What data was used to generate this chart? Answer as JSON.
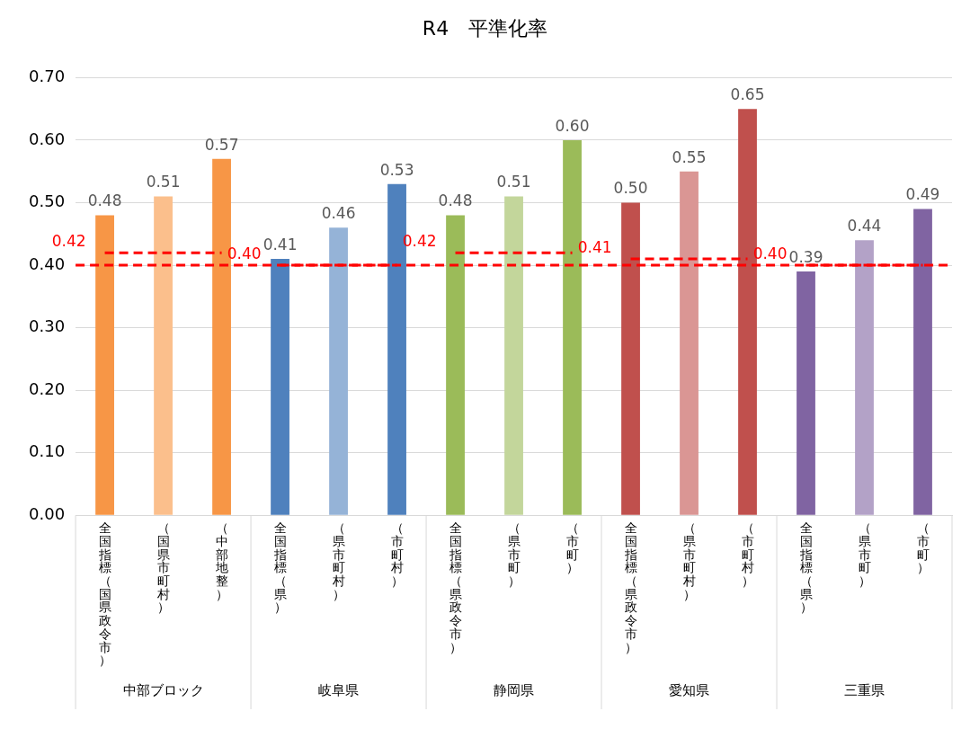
{
  "chart_data": {
    "type": "bar",
    "title": "R4　平準化率",
    "categories": [
      "全国指標（国県政令市）",
      "（国県市町村）",
      "（中部地整）",
      "全国指標（県）",
      "（県市町村）",
      "（市町村）",
      "全国指標（県政令市）",
      "（県市町）",
      "（市町）",
      "全国指標（県政令市）",
      "（県市町村）",
      "（市町村）",
      "全国指標（県）",
      "（県市町）",
      "（市町）"
    ],
    "annotations": [
      "中部ブロック",
      "岐阜県",
      "静岡県",
      "愛知県",
      "三重県"
    ],
    "series": [
      {
        "colors": [
          "#f79646",
          "#fbbf8c",
          "#f79646",
          "#4f81bd",
          "#95b3d7",
          "#4f81bd",
          "#9bbb59",
          "#c3d69b",
          "#9bbb59",
          "#c0504d",
          "#da9694",
          "#c0504d",
          "#8064a2",
          "#b3a2c7",
          "#8064a2"
        ],
        "values": [
          0.48,
          0.51,
          0.57,
          0.41,
          0.46,
          0.53,
          0.48,
          0.51,
          0.6,
          0.5,
          0.55,
          0.65,
          0.39,
          0.44,
          0.49
        ],
        "value_labels": [
          "0.48",
          "0.51",
          "0.57",
          "0.41",
          "0.46",
          "0.53",
          "0.48",
          "0.51",
          "0.60",
          "0.50",
          "0.55",
          "0.65",
          "0.39",
          "0.44",
          "0.49"
        ]
      },
      {
        "type": "line",
        "color": "#ff0000",
        "line_style": "dashed",
        "values": [
          0.42,
          0.42,
          0.42,
          null,
          null,
          null,
          null,
          null,
          null,
          null,
          null,
          null,
          null,
          null,
          null
        ],
        "value_labels": [
          "0.42",
          null,
          null,
          null,
          null,
          null,
          null,
          null,
          null,
          null,
          null,
          null,
          null,
          null,
          null
        ]
      },
      {
        "type": "line",
        "color": "#ff0000",
        "line_style": "dashed",
        "values": [
          null,
          null,
          null,
          0.4,
          0.4,
          0.4,
          null,
          null,
          null,
          null,
          null,
          null,
          null,
          null,
          null
        ],
        "value_labels": [
          null,
          null,
          null,
          "0.40",
          null,
          null,
          null,
          null,
          null,
          null,
          null,
          null,
          null,
          null,
          null
        ]
      },
      {
        "type": "line",
        "color": "#ff0000",
        "line_style": "dashed",
        "values": [
          null,
          null,
          null,
          null,
          null,
          null,
          0.42,
          0.42,
          0.42,
          null,
          null,
          null,
          null,
          null,
          null
        ],
        "value_labels": [
          null,
          null,
          null,
          null,
          null,
          null,
          "0.42",
          null,
          null,
          null,
          null,
          null,
          null,
          null,
          null
        ]
      },
      {
        "type": "line",
        "color": "#ff0000",
        "line_style": "dashed",
        "values": [
          null,
          null,
          null,
          null,
          null,
          null,
          null,
          null,
          null,
          0.41,
          0.41,
          0.41,
          null,
          null,
          null
        ],
        "value_labels": [
          null,
          null,
          null,
          null,
          null,
          null,
          null,
          null,
          null,
          "0.41",
          null,
          null,
          null,
          null,
          null
        ]
      },
      {
        "type": "line",
        "color": "#ff0000",
        "line_style": "dashed",
        "values": [
          null,
          null,
          null,
          null,
          null,
          null,
          null,
          null,
          null,
          null,
          null,
          null,
          0.4,
          0.4,
          0.4
        ],
        "value_labels": [
          null,
          null,
          null,
          null,
          null,
          null,
          null,
          null,
          null,
          null,
          null,
          null,
          "0.40",
          null,
          null
        ]
      }
    ],
    "ref_lines": [
      {
        "axis": "y",
        "value": 0.4,
        "color": "#ff0000",
        "line_style": "dashed"
      }
    ],
    "ylim": [
      0,
      0.7
    ],
    "yticks": [
      {
        "value": 0,
        "label": "0.00"
      },
      {
        "value": 0.1,
        "label": "0.10"
      },
      {
        "value": 0.2,
        "label": "0.20"
      },
      {
        "value": 0.3,
        "label": "0.30"
      },
      {
        "value": 0.4,
        "label": "0.40"
      },
      {
        "value": 0.5,
        "label": "0.50"
      },
      {
        "value": 0.6,
        "label": "0.60"
      },
      {
        "value": 0.7,
        "label": "0.70"
      }
    ],
    "grid": "y",
    "legend": false,
    "marker": "none"
  }
}
